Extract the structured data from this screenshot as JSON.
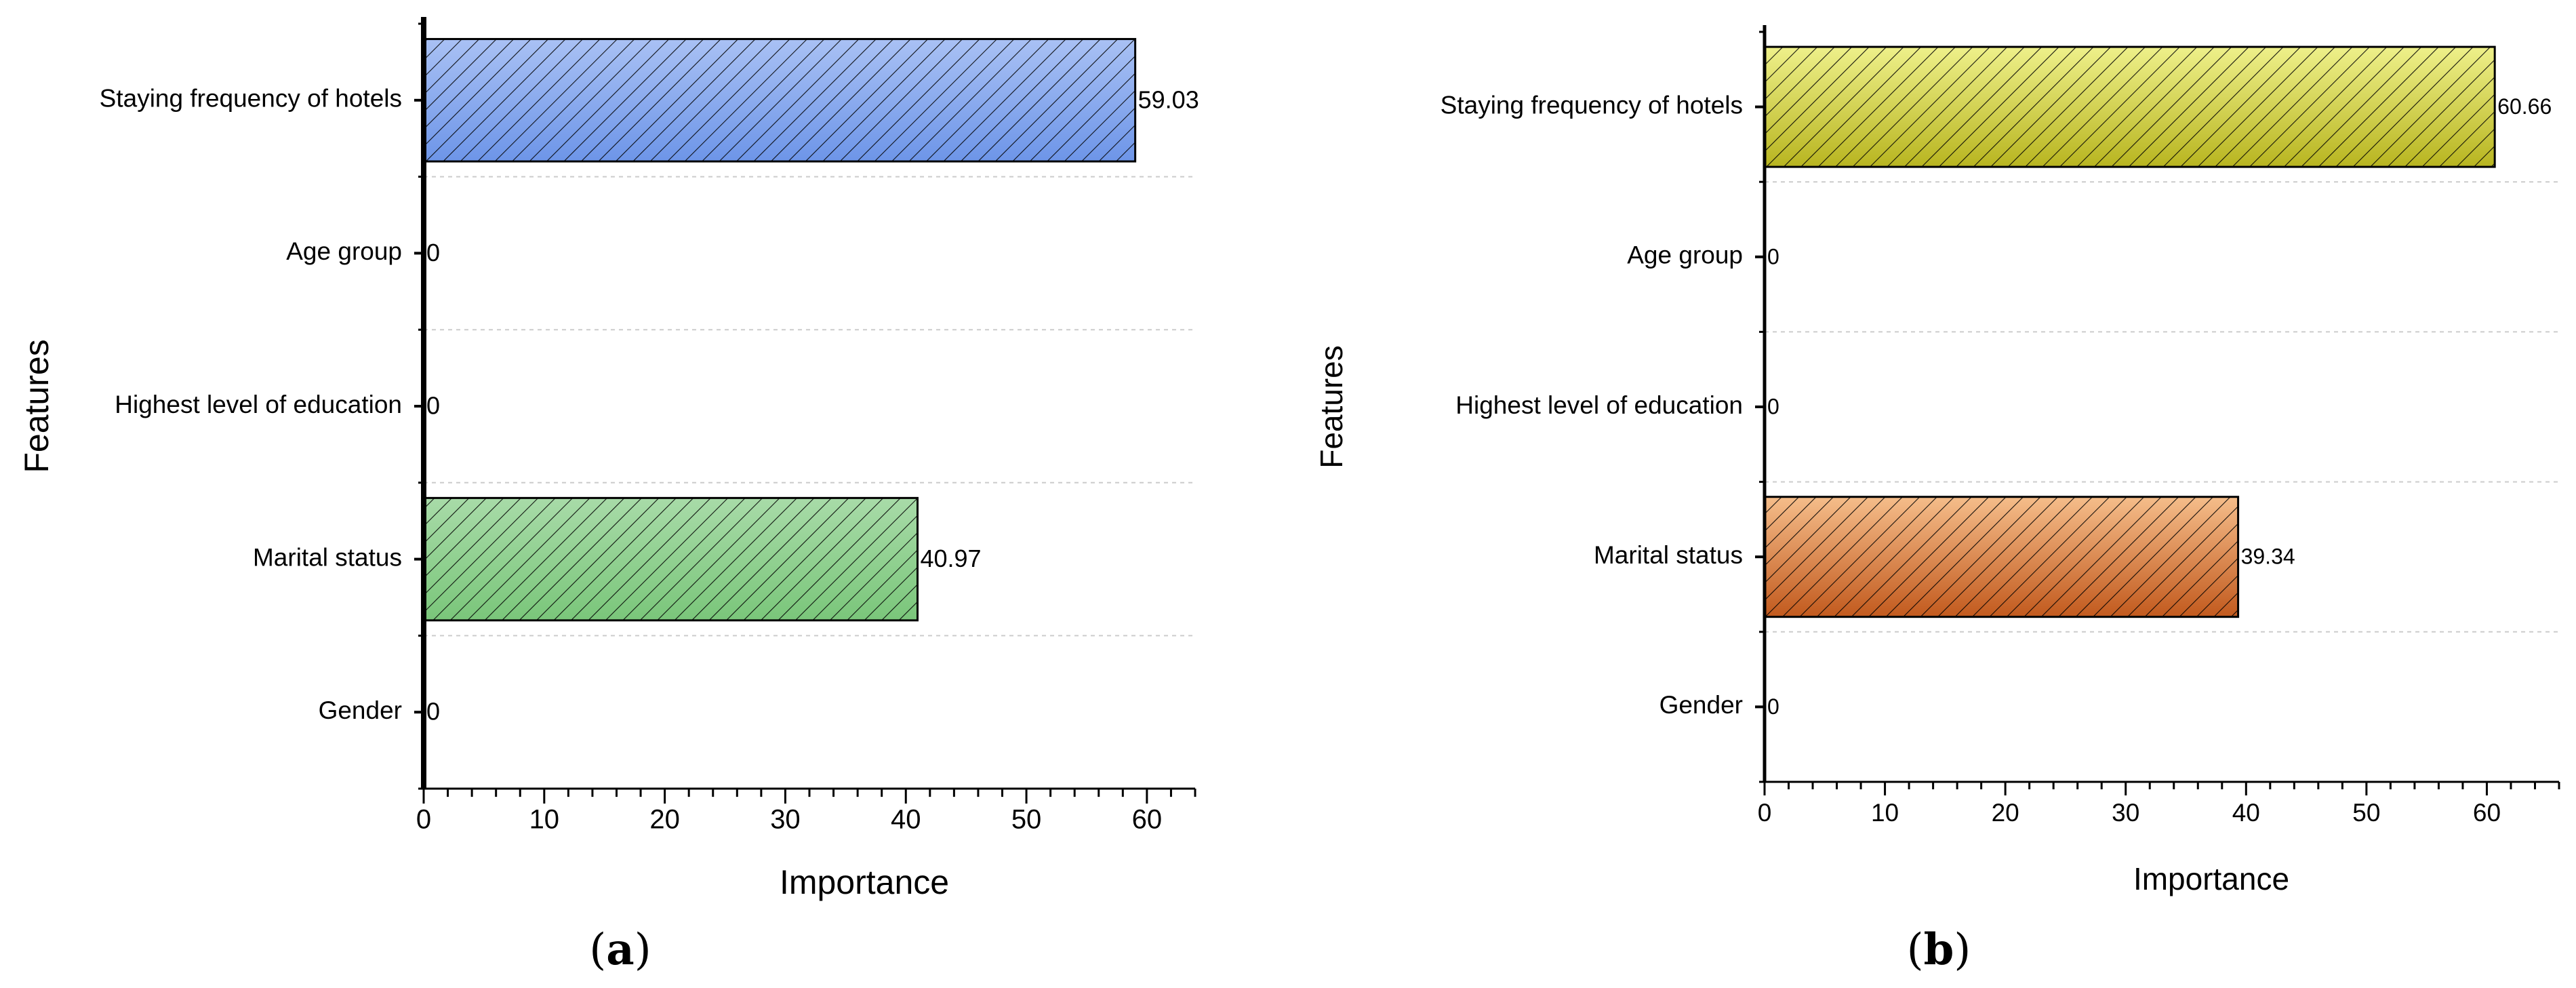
{
  "chart_data": [
    {
      "type": "bar",
      "orientation": "horizontal",
      "panel_label": "a",
      "ylabel": "Features",
      "xlabel": "Importance",
      "categories": [
        "Staying frequency of hotels",
        "Age group",
        "Highest level of education",
        "Marital status",
        "Gender"
      ],
      "values": [
        59.03,
        0,
        0,
        40.97,
        0
      ],
      "value_labels": [
        "59.03",
        "0",
        "0",
        "40.97",
        "0"
      ],
      "xlim": [
        0,
        64
      ],
      "xticks": [
        0,
        10,
        20,
        30,
        40,
        50,
        60
      ],
      "xtick_labels": [
        "0",
        "10",
        "20",
        "30",
        "40",
        "50",
        "60"
      ],
      "bar_colors": [
        "#6d95e8",
        "#6d95e8",
        "#6d95e8",
        "#7ac67a",
        "#7ac67a"
      ],
      "bar_colors_light": [
        "#a9c1f4",
        "#a9c1f4",
        "#a9c1f4",
        "#a8dba8",
        "#a8dba8"
      ],
      "grid": true
    },
    {
      "type": "bar",
      "orientation": "horizontal",
      "panel_label": "b",
      "ylabel": "Features",
      "xlabel": "Importance",
      "categories": [
        "Staying frequency of hotels",
        "Age group",
        "Highest level of education",
        "Marital status",
        "Gender"
      ],
      "values": [
        60.66,
        0,
        0,
        39.34,
        0
      ],
      "value_labels": [
        "60.66",
        "0",
        "0",
        "39.34",
        "0"
      ],
      "xlim": [
        0,
        66
      ],
      "xticks": [
        0,
        10,
        20,
        30,
        40,
        50,
        60
      ],
      "xtick_labels": [
        "0",
        "10",
        "20",
        "30",
        "40",
        "50",
        "60"
      ],
      "bar_colors": [
        "#b8b520",
        "#b8b520",
        "#b8b520",
        "#c25a1e",
        "#c25a1e"
      ],
      "bar_colors_light": [
        "#eef08a",
        "#eef08a",
        "#eef08a",
        "#f5bd8a",
        "#f5bd8a"
      ],
      "grid": true
    }
  ]
}
